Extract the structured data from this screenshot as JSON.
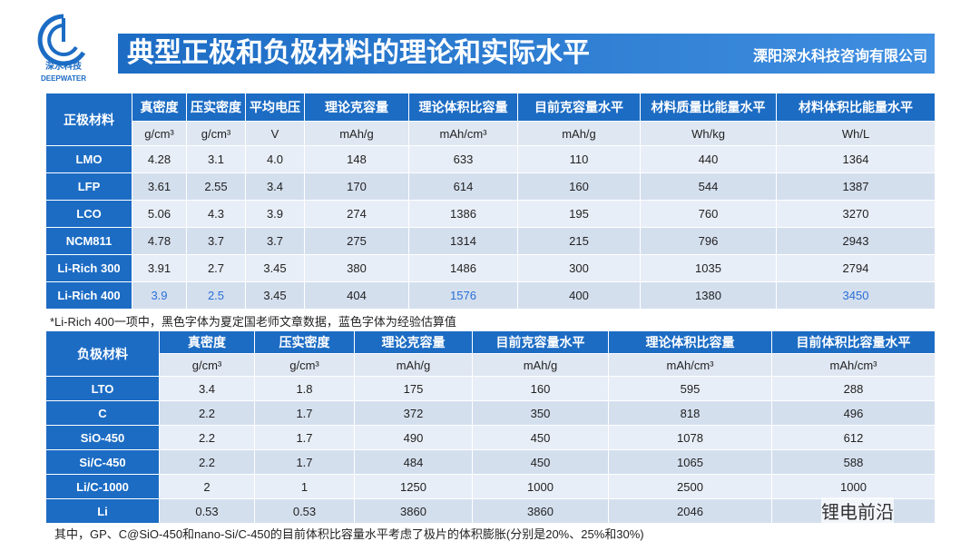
{
  "header": {
    "logo_text": "深水科技",
    "logo_sub": "DEEPWATER",
    "title": "典型正极和负极材料的理论和实际水平",
    "company": "溧阳深水科技咨询有限公司"
  },
  "table1": {
    "columns": [
      "正极材料",
      "真密度",
      "压实密度",
      "平均电压",
      "理论克容量",
      "理论体积比容量",
      "目前克容量水平",
      "材料质量比能量水平",
      "材料体积比能量水平"
    ],
    "units": [
      "g/cm³",
      "g/cm³",
      "V",
      "mAh/g",
      "mAh/cm³",
      "mAh/g",
      "Wh/kg",
      "Wh/L"
    ],
    "rows": [
      [
        "LMO",
        "4.28",
        "3.1",
        "4.0",
        "148",
        "633",
        "110",
        "440",
        "1364"
      ],
      [
        "LFP",
        "3.61",
        "2.55",
        "3.4",
        "170",
        "614",
        "160",
        "544",
        "1387"
      ],
      [
        "LCO",
        "5.06",
        "4.3",
        "3.9",
        "274",
        "1386",
        "195",
        "760",
        "3270"
      ],
      [
        "NCM811",
        "4.78",
        "3.7",
        "3.7",
        "275",
        "1314",
        "215",
        "796",
        "2943"
      ],
      [
        "Li-Rich 300",
        "3.91",
        "2.7",
        "3.45",
        "380",
        "1486",
        "300",
        "1035",
        "2794"
      ],
      [
        "Li-Rich 400",
        "3.9",
        "2.5",
        "3.45",
        "404",
        "1576",
        "400",
        "1380",
        "3450"
      ]
    ],
    "estimated_color": "#2a6fd6",
    "estimated_cells": [
      [
        5,
        1
      ],
      [
        5,
        2
      ],
      [
        5,
        5
      ],
      [
        5,
        8
      ]
    ]
  },
  "note": "*Li-Rich 400一项中，黑色字体为夏定国老师文章数据，蓝色字体为经验估算值",
  "table2": {
    "columns": [
      "负极材料",
      "真密度",
      "压实密度",
      "理论克容量",
      "目前克容量水平",
      "理论体积比容量",
      "目前体积比容量水平"
    ],
    "units": [
      "g/cm³",
      "g/cm³",
      "mAh/g",
      "mAh/g",
      "mAh/cm³",
      "mAh/cm³"
    ],
    "rows": [
      [
        "LTO",
        "3.4",
        "1.8",
        "175",
        "160",
        "595",
        "288"
      ],
      [
        "C",
        "2.2",
        "1.7",
        "372",
        "350",
        "818",
        "496"
      ],
      [
        "SiO-450",
        "2.2",
        "1.7",
        "490",
        "450",
        "1078",
        "612"
      ],
      [
        "Si/C-450",
        "2.2",
        "1.7",
        "484",
        "450",
        "1065",
        "588"
      ],
      [
        "Li/C-1000",
        "2",
        "1",
        "1250",
        "1000",
        "2500",
        "1000"
      ],
      [
        "Li",
        "0.53",
        "0.53",
        "3860",
        "3860",
        "2046",
        ""
      ]
    ]
  },
  "footer": "其中，GP、C@SiO-450和nano-Si/C-450的目前体积比容量水平考虑了极片的体积膨胀(分别是20%、25%和30%)",
  "watermark": "锂电前沿"
}
